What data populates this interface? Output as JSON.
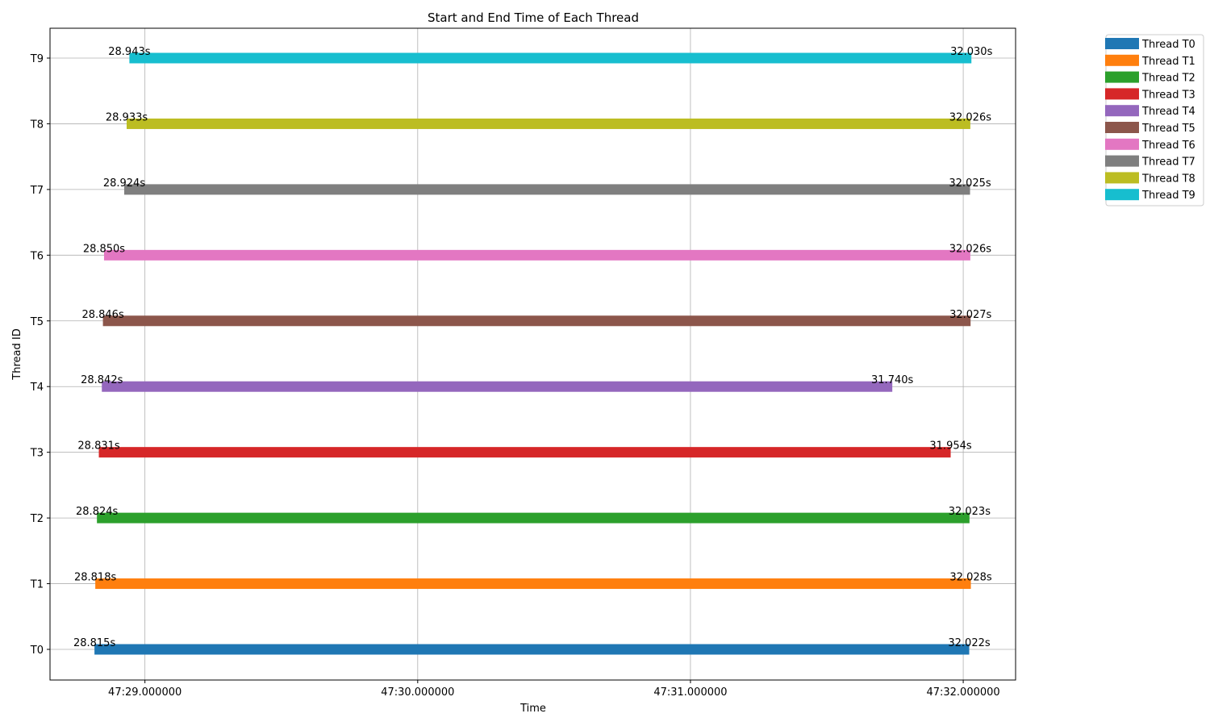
{
  "chart_data": {
    "type": "bar",
    "orientation": "horizontal-timeline",
    "title": "Start and End Time of Each Thread",
    "xlabel": "Time",
    "ylabel": "Thread ID",
    "x_unit": "seconds (47:ss)",
    "xlim": [
      28.652,
      32.192
    ],
    "x_ticks": [
      {
        "value": 29.0,
        "label": "47:29.000000"
      },
      {
        "value": 30.0,
        "label": "47:30.000000"
      },
      {
        "value": 31.0,
        "label": "47:31.000000"
      },
      {
        "value": 32.0,
        "label": "47:32.000000"
      }
    ],
    "categories": [
      "T0",
      "T1",
      "T2",
      "T3",
      "T4",
      "T5",
      "T6",
      "T7",
      "T8",
      "T9"
    ],
    "grid": true,
    "legend_position": "outside upper right",
    "series": [
      {
        "name": "Thread T0",
        "category": "T0",
        "start": 28.815,
        "end": 32.022,
        "start_label": "28.815s",
        "end_label": "32.022s",
        "color": "#1f77b4"
      },
      {
        "name": "Thread T1",
        "category": "T1",
        "start": 28.818,
        "end": 32.028,
        "start_label": "28.818s",
        "end_label": "32.028s",
        "color": "#ff7f0e"
      },
      {
        "name": "Thread T2",
        "category": "T2",
        "start": 28.824,
        "end": 32.023,
        "start_label": "28.824s",
        "end_label": "32.023s",
        "color": "#2ca02c"
      },
      {
        "name": "Thread T3",
        "category": "T3",
        "start": 28.831,
        "end": 31.954,
        "start_label": "28.831s",
        "end_label": "31.954s",
        "color": "#d62728"
      },
      {
        "name": "Thread T4",
        "category": "T4",
        "start": 28.842,
        "end": 31.74,
        "start_label": "28.842s",
        "end_label": "31.740s",
        "color": "#9467bd"
      },
      {
        "name": "Thread T5",
        "category": "T5",
        "start": 28.846,
        "end": 32.027,
        "start_label": "28.846s",
        "end_label": "32.027s",
        "color": "#8c564b"
      },
      {
        "name": "Thread T6",
        "category": "T6",
        "start": 28.85,
        "end": 32.026,
        "start_label": "28.850s",
        "end_label": "32.026s",
        "color": "#e377c2"
      },
      {
        "name": "Thread T7",
        "category": "T7",
        "start": 28.924,
        "end": 32.025,
        "start_label": "28.924s",
        "end_label": "32.025s",
        "color": "#7f7f7f"
      },
      {
        "name": "Thread T8",
        "category": "T8",
        "start": 28.933,
        "end": 32.026,
        "start_label": "28.933s",
        "end_label": "32.026s",
        "color": "#bcbd22"
      },
      {
        "name": "Thread T9",
        "category": "T9",
        "start": 28.943,
        "end": 32.03,
        "start_label": "28.943s",
        "end_label": "32.030s",
        "color": "#17becf"
      }
    ]
  }
}
